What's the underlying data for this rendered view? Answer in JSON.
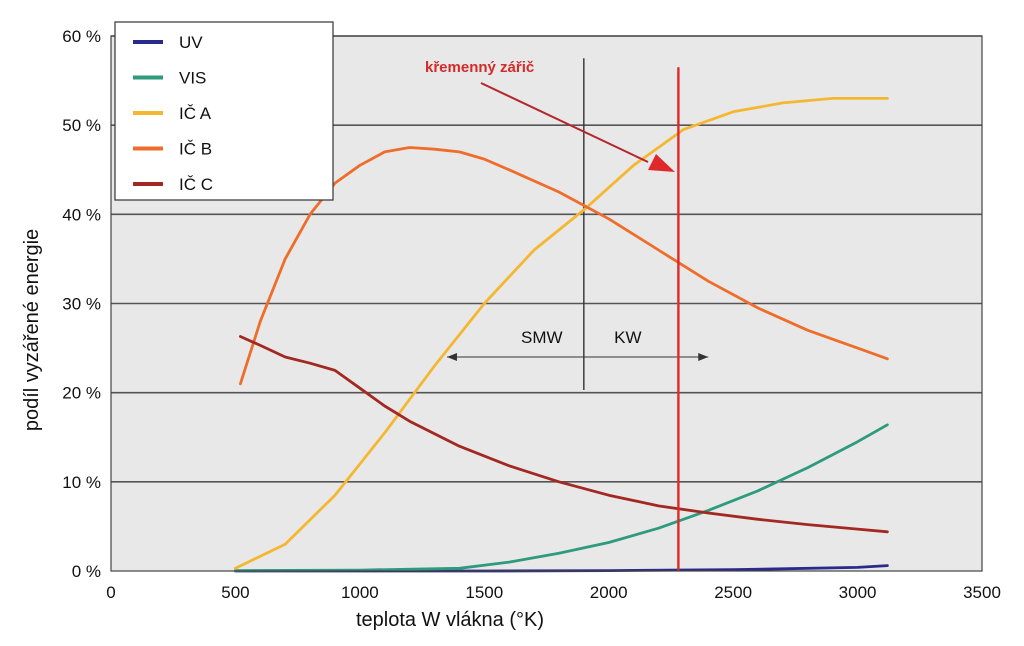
{
  "chart_data": {
    "type": "line",
    "title": "",
    "xlabel": "teplota W vlákna (°K)",
    "ylabel": "podíl vyzářené energie",
    "xlim": [
      0,
      3500
    ],
    "ylim": [
      0,
      60
    ],
    "x_ticks": [
      0,
      500,
      1000,
      1500,
      2000,
      2500,
      3000,
      3500
    ],
    "y_ticks": [
      0,
      10,
      20,
      30,
      40,
      50,
      60
    ],
    "y_tick_labels": [
      "0 %",
      "10 %",
      "20 %",
      "30 %",
      "40 %",
      "50 %",
      "60 %"
    ],
    "grid": "horizontal",
    "legend_position": "top-left",
    "series": [
      {
        "name": "UV",
        "color": "#2a2a8c",
        "x": [
          500,
          1000,
          1500,
          2000,
          2500,
          3000,
          3120
        ],
        "y": [
          0,
          0,
          0,
          0.05,
          0.15,
          0.4,
          0.6
        ]
      },
      {
        "name": "VIS",
        "color": "#2e9a7e",
        "x": [
          500,
          1000,
          1400,
          1600,
          1800,
          2000,
          2200,
          2400,
          2600,
          2800,
          3000,
          3120
        ],
        "y": [
          0.05,
          0.1,
          0.3,
          1,
          2,
          3.2,
          4.8,
          6.8,
          9,
          11.6,
          14.5,
          16.4
        ]
      },
      {
        "name": "IČ A",
        "color": "#f5b731",
        "x": [
          500,
          700,
          900,
          1100,
          1300,
          1500,
          1700,
          1900,
          2100,
          2300,
          2500,
          2700,
          2900,
          3120
        ],
        "y": [
          0.3,
          3,
          8.5,
          15.5,
          23,
          30,
          36,
          40.5,
          45.5,
          49.5,
          51.5,
          52.5,
          53,
          53
        ]
      },
      {
        "name": "IČ B",
        "color": "#ef6d2a",
        "x": [
          520,
          600,
          700,
          800,
          900,
          1000,
          1100,
          1200,
          1300,
          1400,
          1500,
          1600,
          1800,
          2000,
          2200,
          2400,
          2600,
          2800,
          3000,
          3120
        ],
        "y": [
          21,
          28,
          35,
          40,
          43.5,
          45.5,
          47,
          47.5,
          47.3,
          47,
          46.2,
          45,
          42.5,
          39.5,
          36,
          32.5,
          29.5,
          27,
          25,
          23.8
        ]
      },
      {
        "name": "IČ C",
        "color": "#a32822",
        "x": [
          520,
          600,
          700,
          800,
          900,
          1000,
          1100,
          1200,
          1400,
          1600,
          1800,
          2000,
          2200,
          2400,
          2600,
          2800,
          3000,
          3120
        ],
        "y": [
          26.3,
          25.3,
          24,
          23.3,
          22.5,
          20.5,
          18.5,
          16.8,
          14,
          11.8,
          10,
          8.5,
          7.3,
          6.5,
          5.8,
          5.2,
          4.7,
          4.4
        ]
      }
    ],
    "annotations": {
      "smw_label": "SMW",
      "kw_label": "KW",
      "quartz_label": "křemenný zářič",
      "divider_x": 1900,
      "quartz_x": 2280,
      "arrow_range": [
        1350,
        2400
      ],
      "arrow_y": 24
    }
  }
}
